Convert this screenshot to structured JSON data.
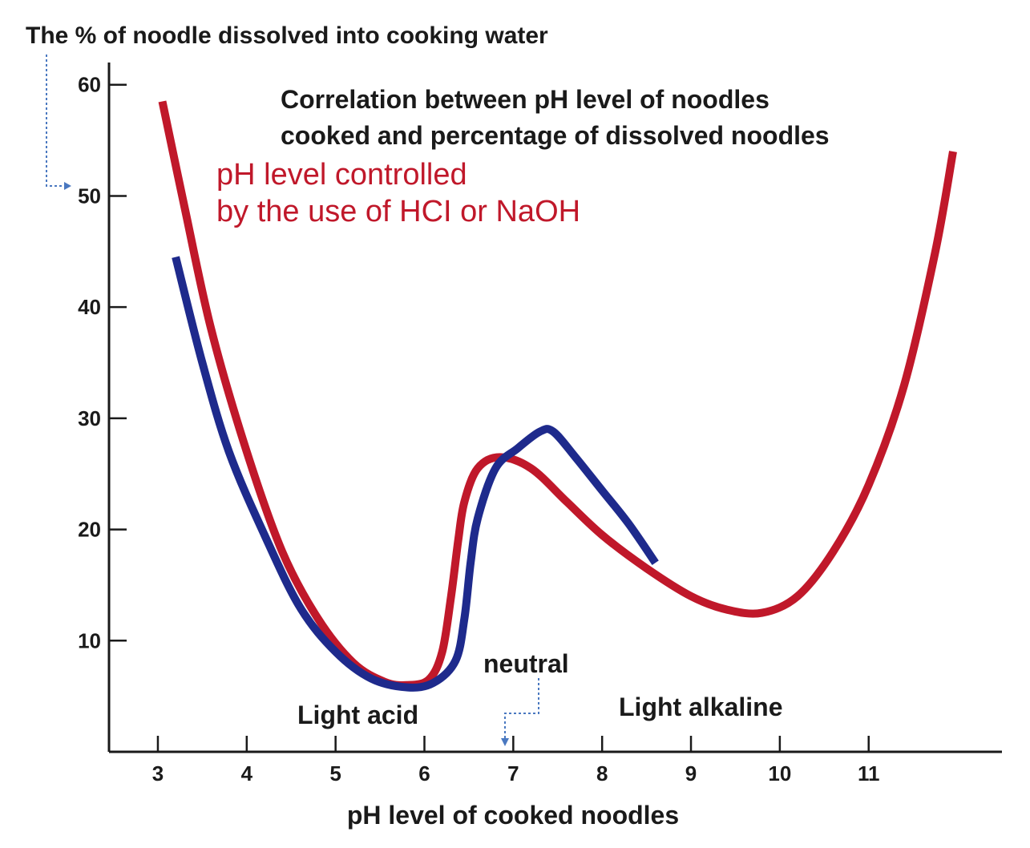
{
  "chart_data": {
    "type": "line",
    "title_lines": [
      "Correlation between pH level of noodles",
      "cooked and percentage of dissolved noodles"
    ],
    "ylabel": "The % of noodle dissolved into cooking water",
    "xlabel": "pH level of cooked noodles",
    "x_ticks": [
      3,
      4,
      5,
      6,
      7,
      8,
      9,
      10,
      11
    ],
    "y_ticks": [
      10,
      20,
      30,
      40,
      50,
      60
    ],
    "xlim": [
      2.45,
      12.5
    ],
    "ylim": [
      0,
      62
    ],
    "red_series_note_lines": [
      "pH level controlled",
      "by the use of HCI or NaOH"
    ],
    "annotations": {
      "neutral": "neutral",
      "light_acid": "Light acid",
      "light_alkaline": "Light alkaline"
    },
    "series": [
      {
        "color": "#c0182a",
        "points": [
          [
            3.05,
            58.5
          ],
          [
            3.3,
            49
          ],
          [
            3.6,
            38
          ],
          [
            4.0,
            27
          ],
          [
            4.4,
            18
          ],
          [
            4.8,
            12
          ],
          [
            5.2,
            8
          ],
          [
            5.55,
            6.3
          ],
          [
            5.8,
            6
          ],
          [
            6.05,
            6.5
          ],
          [
            6.2,
            9
          ],
          [
            6.3,
            14
          ],
          [
            6.38,
            19
          ],
          [
            6.45,
            22.5
          ],
          [
            6.6,
            25.5
          ],
          [
            6.85,
            26.5
          ],
          [
            7.2,
            25.5
          ],
          [
            7.6,
            22.5
          ],
          [
            8.0,
            19.5
          ],
          [
            8.5,
            16.5
          ],
          [
            9.0,
            14
          ],
          [
            9.4,
            12.8
          ],
          [
            9.8,
            12.5
          ],
          [
            10.2,
            14
          ],
          [
            10.6,
            18
          ],
          [
            11.0,
            24
          ],
          [
            11.4,
            33
          ],
          [
            11.75,
            45
          ],
          [
            11.95,
            54
          ]
        ]
      },
      {
        "color": "#1e2a8c",
        "points": [
          [
            3.2,
            44.5
          ],
          [
            3.5,
            35
          ],
          [
            3.8,
            27
          ],
          [
            4.2,
            19.5
          ],
          [
            4.6,
            13
          ],
          [
            5.0,
            9
          ],
          [
            5.4,
            6.6
          ],
          [
            5.8,
            5.8
          ],
          [
            6.1,
            6.2
          ],
          [
            6.35,
            8.2
          ],
          [
            6.45,
            12
          ],
          [
            6.52,
            17
          ],
          [
            6.6,
            21
          ],
          [
            6.8,
            25.5
          ],
          [
            7.05,
            27.3
          ],
          [
            7.3,
            28.8
          ],
          [
            7.45,
            28.8
          ],
          [
            7.7,
            26.5
          ],
          [
            8.0,
            23.5
          ],
          [
            8.3,
            20.5
          ],
          [
            8.6,
            17
          ]
        ]
      }
    ]
  },
  "colors": {
    "axis": "#1a1a1a",
    "red": "#c0182a",
    "blue": "#1e2a8c",
    "arrow": "#4a78c0"
  }
}
